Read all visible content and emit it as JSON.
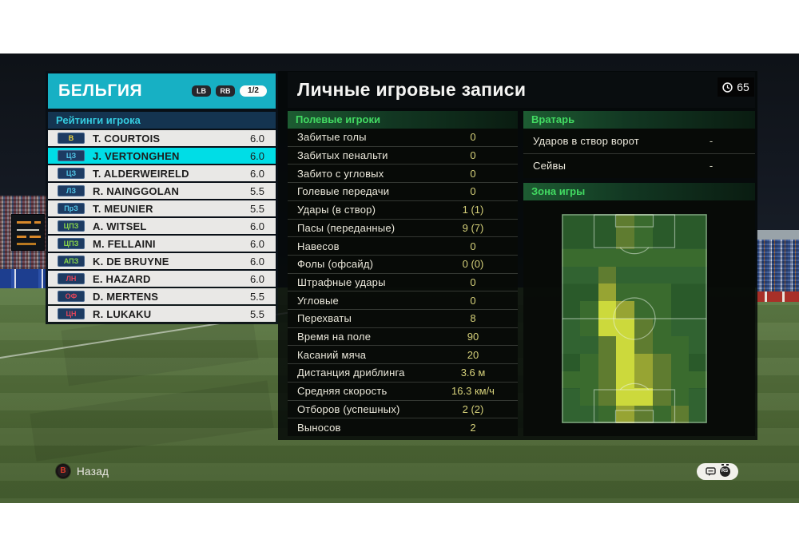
{
  "header": {
    "team_name": "БЕЛЬГИЯ",
    "lb_button": "LB",
    "rb_button": "RB",
    "page_indicator": "1/2",
    "clock_value": "65"
  },
  "ratings": {
    "header": "Рейтинги игрока",
    "players": [
      {
        "position": "В",
        "role": "gk",
        "name": "T. COURTOIS",
        "rating": "6.0",
        "selected": false
      },
      {
        "position": "ЦЗ",
        "role": "df",
        "name": "J. VERTONGHEN",
        "rating": "6.0",
        "selected": true
      },
      {
        "position": "ЦЗ",
        "role": "df",
        "name": "T. ALDERWEIRELD",
        "rating": "6.0",
        "selected": false
      },
      {
        "position": "ЛЗ",
        "role": "df",
        "name": "R. NAINGGOLAN",
        "rating": "5.5",
        "selected": false
      },
      {
        "position": "ПрЗ",
        "role": "df",
        "name": "T. MEUNIER",
        "rating": "5.5",
        "selected": false
      },
      {
        "position": "ЦПЗ",
        "role": "mf",
        "name": "A. WITSEL",
        "rating": "6.0",
        "selected": false
      },
      {
        "position": "ЦПЗ",
        "role": "mf",
        "name": "M. FELLAINI",
        "rating": "6.0",
        "selected": false
      },
      {
        "position": "АПЗ",
        "role": "mf",
        "name": "K. DE BRUYNE",
        "rating": "6.0",
        "selected": false
      },
      {
        "position": "ЛН",
        "role": "fw",
        "name": "E. HAZARD",
        "rating": "6.0",
        "selected": false
      },
      {
        "position": "ОФ",
        "role": "fw",
        "name": "D. MERTENS",
        "rating": "5.5",
        "selected": false
      },
      {
        "position": "ЦН",
        "role": "fw",
        "name": "R. LUKAKU",
        "rating": "5.5",
        "selected": false
      }
    ]
  },
  "stats_panel": {
    "title": "Личные игровые записи",
    "field_players": {
      "header": "Полевые игроки",
      "rows": [
        {
          "label": "Забитые голы",
          "value": "0"
        },
        {
          "label": "Забитых пенальти",
          "value": "0"
        },
        {
          "label": "Забито с угловых",
          "value": "0"
        },
        {
          "label": "Голевые передачи",
          "value": "0"
        },
        {
          "label": "Удары (в створ)",
          "value": "1 (1)"
        },
        {
          "label": "Пасы (переданные)",
          "value": "9 (7)"
        },
        {
          "label": "Навесов",
          "value": "0"
        },
        {
          "label": "Фолы (офсайд)",
          "value": "0 (0)"
        },
        {
          "label": "Штрафные удары",
          "value": "0"
        },
        {
          "label": "Угловые",
          "value": "0"
        },
        {
          "label": "Перехваты",
          "value": "8"
        },
        {
          "label": "Время на поле",
          "value": "90"
        },
        {
          "label": "Касаний мяча",
          "value": "20"
        },
        {
          "label": "Дистанция дриблинга",
          "value": "3.6 м"
        },
        {
          "label": "Средняя скорость",
          "value": "16.3 км/ч"
        },
        {
          "label": "Отборов (успешных)",
          "value": "2 (2)"
        },
        {
          "label": "Выносов",
          "value": "2"
        }
      ]
    },
    "goalkeeper": {
      "header": "Вратарь",
      "rows": [
        {
          "label": "Ударов в створ ворот",
          "value": "-"
        },
        {
          "label": "Сейвы",
          "value": "-"
        }
      ]
    },
    "zone": {
      "header": "Зона игры",
      "heatmap": {
        "rows": 12,
        "cols": 8,
        "palette": [
          "transparent",
          "#3a6b2e",
          "#5f7c30",
          "#97a433",
          "#ccd93c"
        ],
        "intensities": [
          [
            0,
            0,
            0,
            2,
            1,
            0,
            0,
            0
          ],
          [
            0,
            0,
            0,
            2,
            1,
            0,
            0,
            0
          ],
          [
            1,
            1,
            1,
            1,
            1,
            1,
            1,
            1
          ],
          [
            0,
            0,
            2,
            0,
            0,
            0,
            0,
            0
          ],
          [
            0,
            0,
            3,
            1,
            1,
            1,
            0,
            0
          ],
          [
            0,
            1,
            4,
            3,
            1,
            1,
            0,
            0
          ],
          [
            0,
            1,
            4,
            4,
            2,
            1,
            0,
            0
          ],
          [
            0,
            0,
            2,
            4,
            2,
            1,
            1,
            0
          ],
          [
            0,
            1,
            2,
            4,
            3,
            2,
            1,
            0
          ],
          [
            1,
            1,
            2,
            4,
            3,
            2,
            1,
            1
          ],
          [
            0,
            1,
            2,
            4,
            4,
            2,
            1,
            0
          ],
          [
            0,
            0,
            1,
            3,
            2,
            1,
            2,
            0
          ]
        ]
      }
    }
  },
  "footer": {
    "back_button_glyph": "B",
    "back_label": "Назад",
    "rs_button_label": "RS"
  },
  "colors": {
    "accent_cyan": "#17b0c4",
    "selected_row": "#00dde6",
    "section_green": "#42da62",
    "stat_value_yellow": "#d6d17a",
    "pos_gk": "#ecd23e",
    "pos_df": "#52c6e8",
    "pos_mf": "#88d44a",
    "pos_fw": "#e0455a"
  }
}
